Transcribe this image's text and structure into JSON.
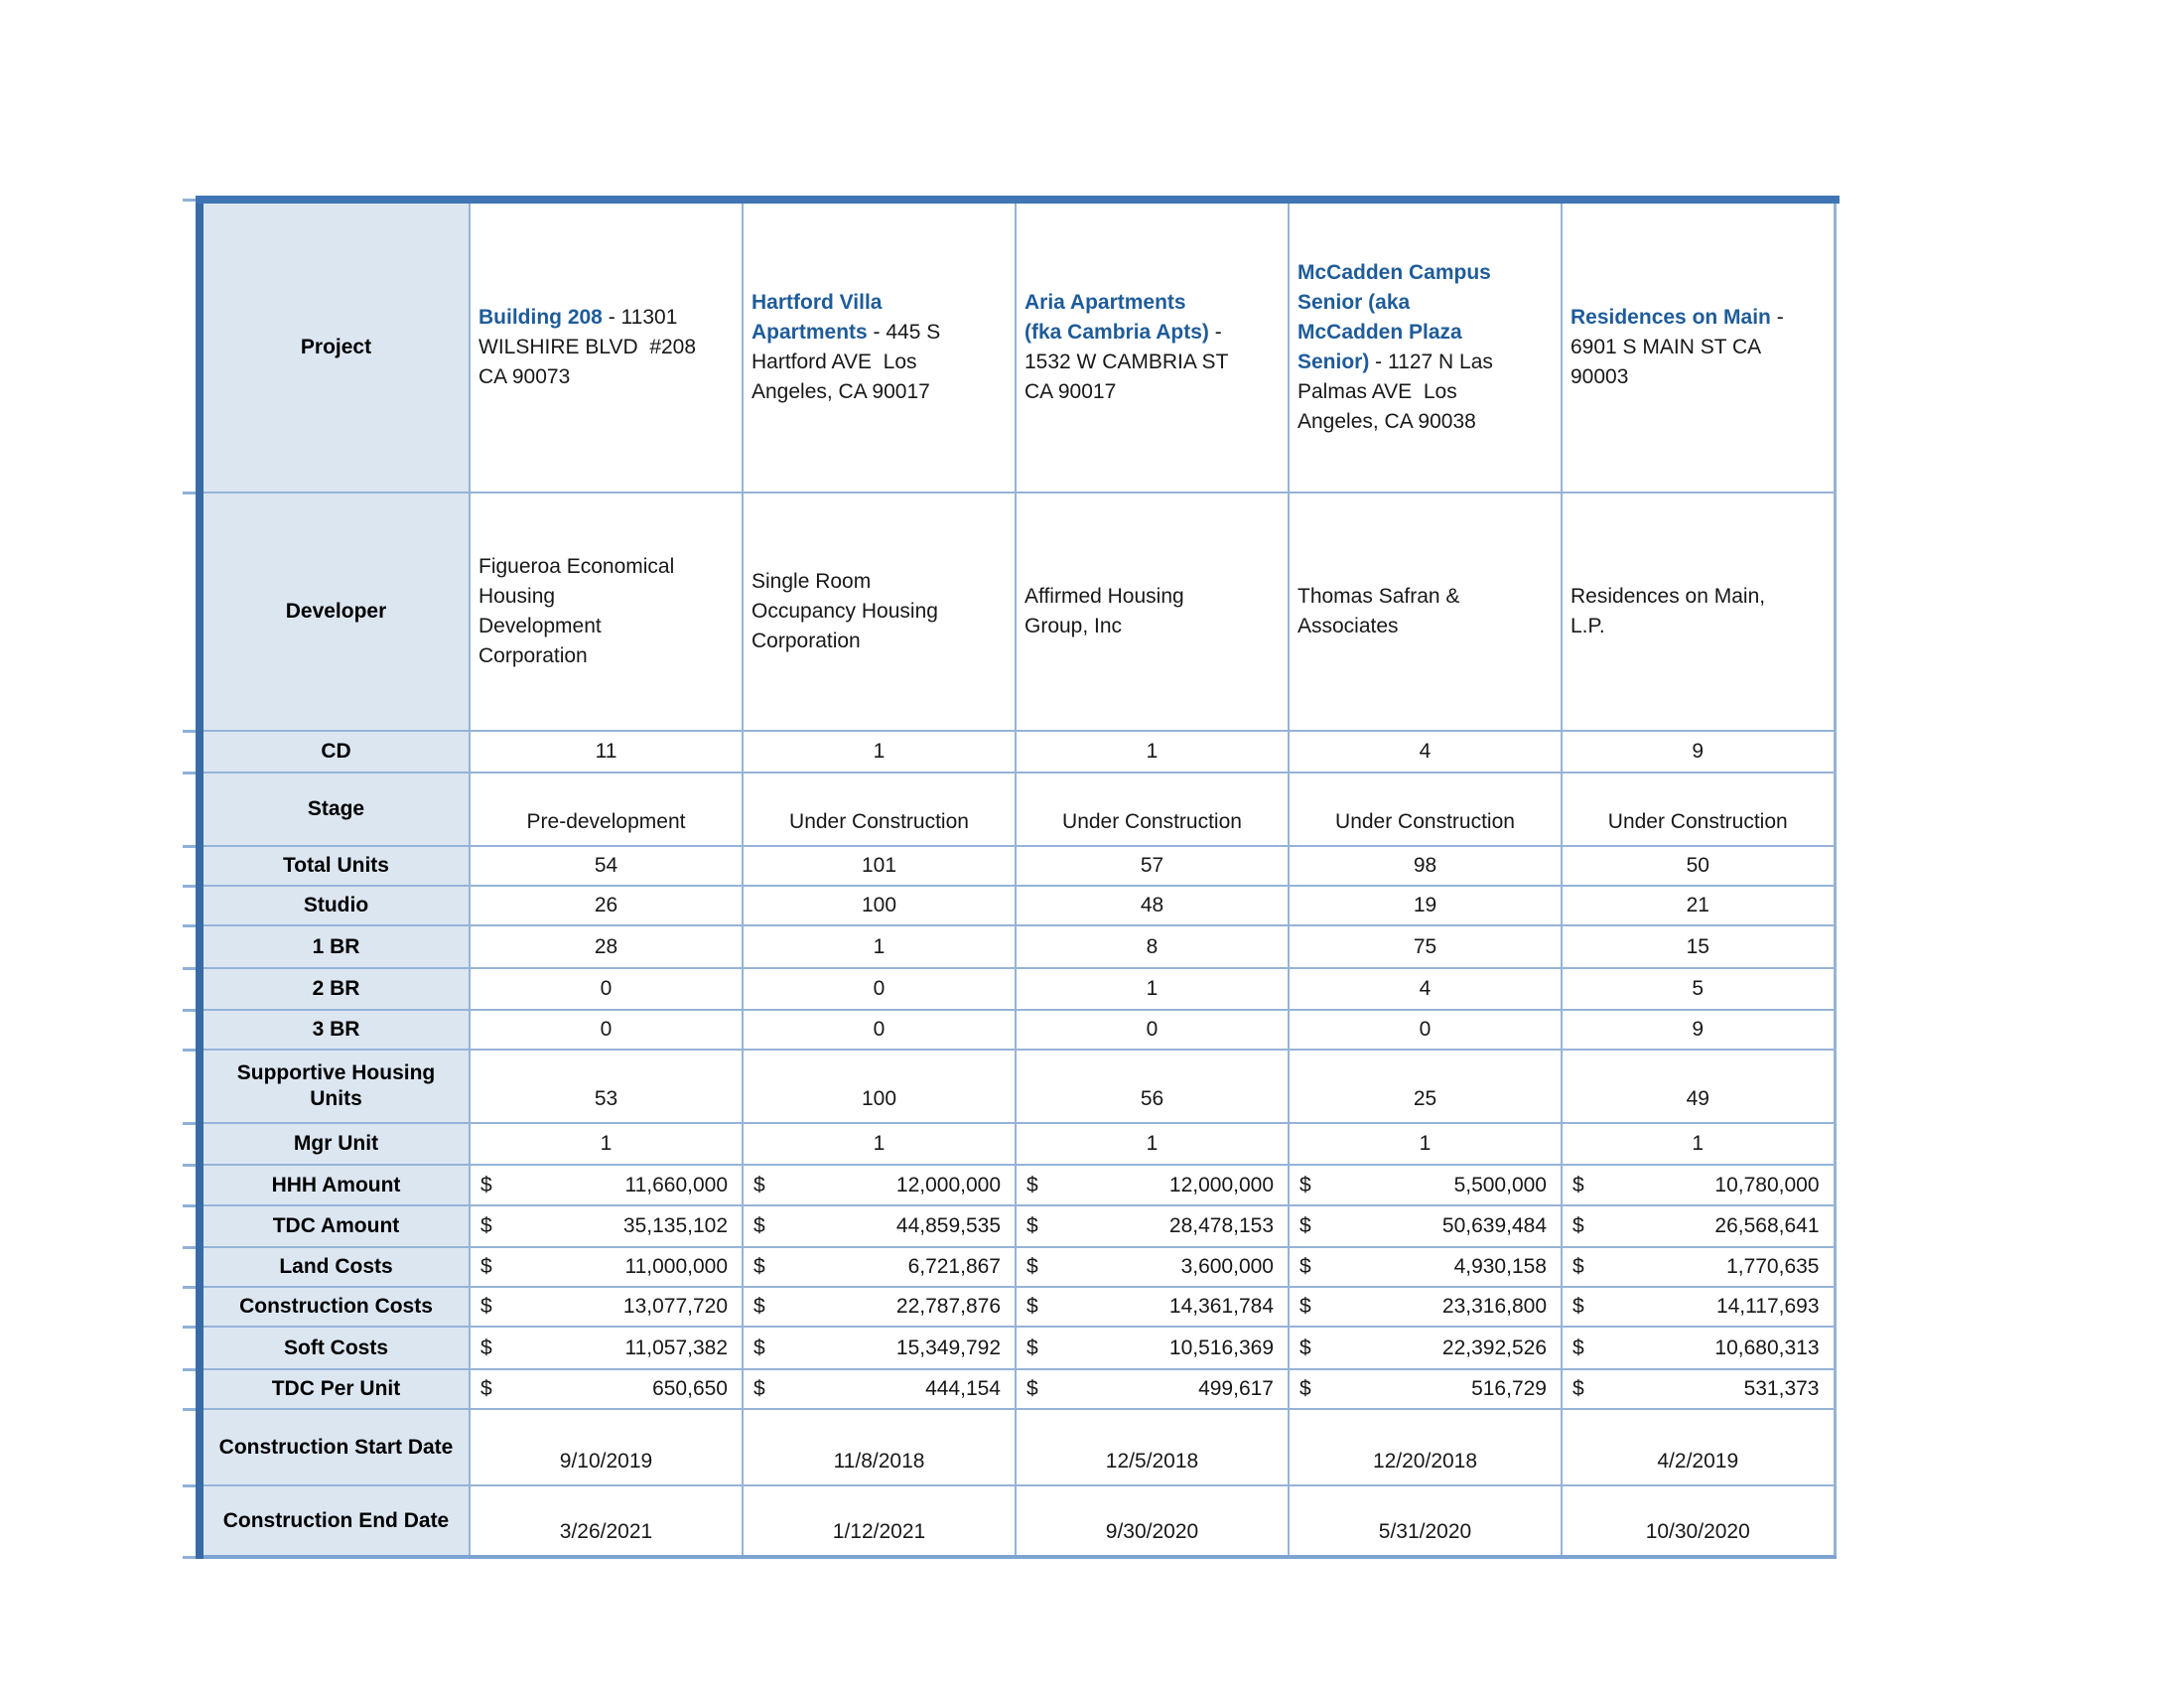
{
  "table": {
    "separator": " - ",
    "currency_symbol": "$",
    "colors": {
      "header_fill": "#dce6f1",
      "grid_line": "#95b3d7",
      "outer_border_top": "#4075b5",
      "outer_border_left": "#386ba6",
      "project_name_text": "#1f5c99",
      "body_text": "#181818"
    },
    "projects": [
      {
        "name": "Building 208",
        "address": "11301\nWILSHIRE BLVD  #208\nCA 90073"
      },
      {
        "name": "Hartford Villa\nApartments",
        "address": "445 S\nHartford AVE  Los\nAngeles, CA 90017"
      },
      {
        "name": "Aria Apartments\n(fka Cambria Apts)",
        "address": "\n1532 W CAMBRIA ST\nCA 90017"
      },
      {
        "name": "McCadden Campus\nSenior (aka\nMcCadden Plaza\nSenior)",
        "address": "1127 N Las\nPalmas AVE  Los\nAngeles, CA 90038"
      },
      {
        "name": "Residences on Main",
        "address": "\n6901 S MAIN ST CA\n90003"
      }
    ],
    "rows": [
      {
        "key": "project",
        "label": "Project",
        "type": "project"
      },
      {
        "key": "developer",
        "label": "Developer",
        "type": "text",
        "values": [
          "Figueroa Economical\nHousing\nDevelopment\nCorporation",
          "Single Room\nOccupancy Housing\nCorporation",
          "Affirmed Housing\nGroup, Inc",
          "Thomas Safran &\nAssociates",
          "Residences on Main,\nL.P."
        ]
      },
      {
        "key": "cd",
        "label": "CD",
        "type": "center",
        "values": [
          "11",
          "1",
          "1",
          "4",
          "9"
        ]
      },
      {
        "key": "stage",
        "label": "Stage",
        "type": "bottom-center",
        "values": [
          "Pre-development",
          "Under Construction",
          "Under Construction",
          "Under Construction",
          "Under Construction"
        ]
      },
      {
        "key": "total-units",
        "label": "Total Units",
        "type": "center",
        "values": [
          "54",
          "101",
          "57",
          "98",
          "50"
        ]
      },
      {
        "key": "studio",
        "label": "Studio",
        "type": "center",
        "values": [
          "26",
          "100",
          "48",
          "19",
          "21"
        ]
      },
      {
        "key": "1br",
        "label": "1 BR",
        "type": "center",
        "values": [
          "28",
          "1",
          "8",
          "75",
          "15"
        ]
      },
      {
        "key": "2br",
        "label": "2 BR",
        "type": "center",
        "values": [
          "0",
          "0",
          "1",
          "4",
          "5"
        ]
      },
      {
        "key": "3br",
        "label": "3 BR",
        "type": "center",
        "values": [
          "0",
          "0",
          "0",
          "0",
          "9"
        ]
      },
      {
        "key": "supportive-housing-units",
        "label": "Supportive Housing Units",
        "type": "bottom-center",
        "values": [
          "53",
          "100",
          "56",
          "25",
          "49"
        ]
      },
      {
        "key": "mgr-unit",
        "label": "Mgr Unit",
        "type": "center",
        "values": [
          "1",
          "1",
          "1",
          "1",
          "1"
        ]
      },
      {
        "key": "hhh-amount",
        "label": "HHH Amount",
        "type": "money",
        "values": [
          "11,660,000",
          "12,000,000",
          "12,000,000",
          "5,500,000",
          "10,780,000"
        ]
      },
      {
        "key": "tdc-amount",
        "label": "TDC Amount",
        "type": "money",
        "values": [
          "35,135,102",
          "44,859,535",
          "28,478,153",
          "50,639,484",
          "26,568,641"
        ]
      },
      {
        "key": "land-costs",
        "label": "Land Costs",
        "type": "money",
        "values": [
          "11,000,000",
          "6,721,867",
          "3,600,000",
          "4,930,158",
          "1,770,635"
        ]
      },
      {
        "key": "construction-costs",
        "label": "Construction Costs",
        "type": "money",
        "values": [
          "13,077,720",
          "22,787,876",
          "14,361,784",
          "23,316,800",
          "14,117,693"
        ]
      },
      {
        "key": "soft-costs",
        "label": "Soft Costs",
        "type": "money",
        "values": [
          "11,057,382",
          "15,349,792",
          "10,516,369",
          "22,392,526",
          "10,680,313"
        ]
      },
      {
        "key": "tdc-per-unit",
        "label": "TDC Per Unit",
        "type": "money",
        "values": [
          "650,650",
          "444,154",
          "499,617",
          "516,729",
          "531,373"
        ]
      },
      {
        "key": "construction-start-date",
        "label": "Construction Start Date",
        "type": "bottom-center",
        "values": [
          "9/10/2019",
          "11/8/2018",
          "12/5/2018",
          "12/20/2018",
          "4/2/2019"
        ]
      },
      {
        "key": "construction-end-date",
        "label": "Construction End Date",
        "type": "bottom-center",
        "values": [
          "3/26/2021",
          "1/12/2021",
          "9/30/2020",
          "5/31/2020",
          "10/30/2020"
        ]
      }
    ]
  }
}
